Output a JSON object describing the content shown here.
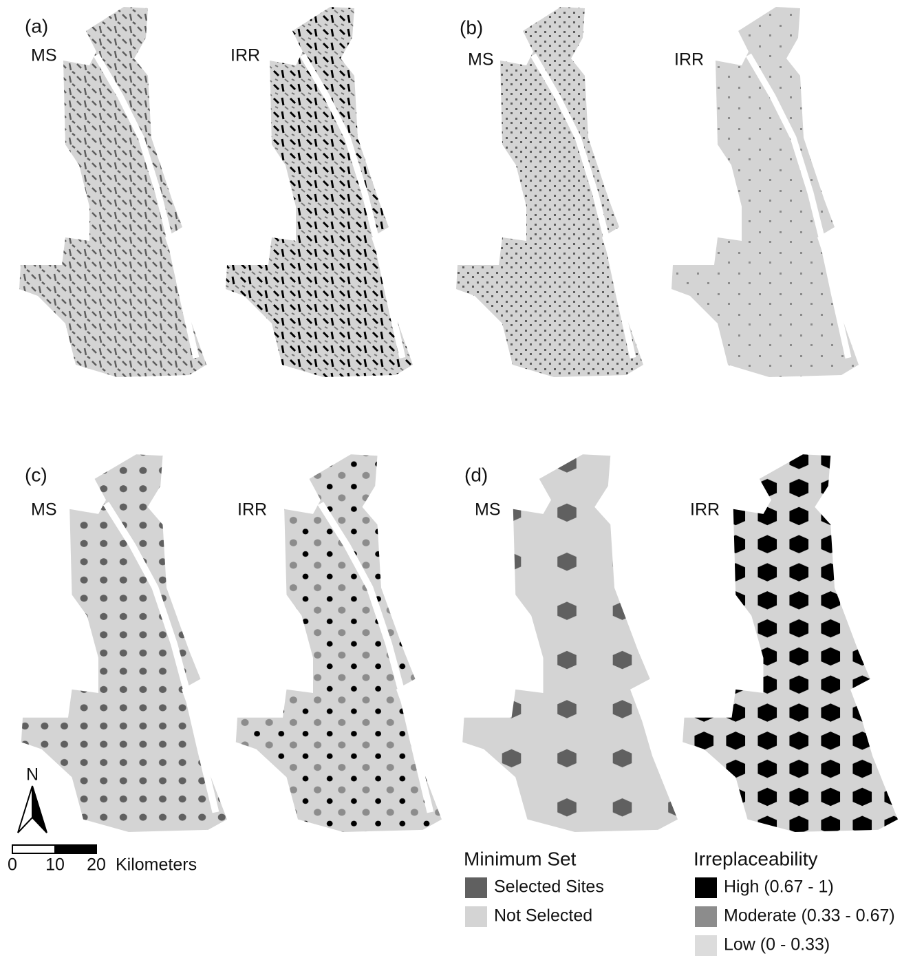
{
  "panels": [
    {
      "label": "(a)",
      "maps": [
        "MS",
        "IRR"
      ]
    },
    {
      "label": "(b)",
      "maps": [
        "MS",
        "IRR"
      ]
    },
    {
      "label": "(c)",
      "maps": [
        "MS",
        "IRR"
      ]
    },
    {
      "label": "(d)",
      "maps": [
        "MS",
        "IRR"
      ]
    }
  ],
  "north_arrow": "N",
  "scale_bar": {
    "ticks": [
      "0",
      "10",
      "20"
    ],
    "unit": "Kilometers"
  },
  "legends": [
    {
      "title": "Minimum Set",
      "items": [
        {
          "label": "Selected Sites",
          "color": "#606060"
        },
        {
          "label": "Not Selected",
          "color": "#d4d4d4"
        }
      ]
    },
    {
      "title": "Irreplaceability",
      "items": [
        {
          "label": "High (0.67 - 1)",
          "color": "#000000"
        },
        {
          "label": "Moderate (0.33 - 0.67)",
          "color": "#8c8c8c"
        },
        {
          "label": "Low (0 - 0.33)",
          "color": "#dcdcdc"
        }
      ]
    }
  ]
}
